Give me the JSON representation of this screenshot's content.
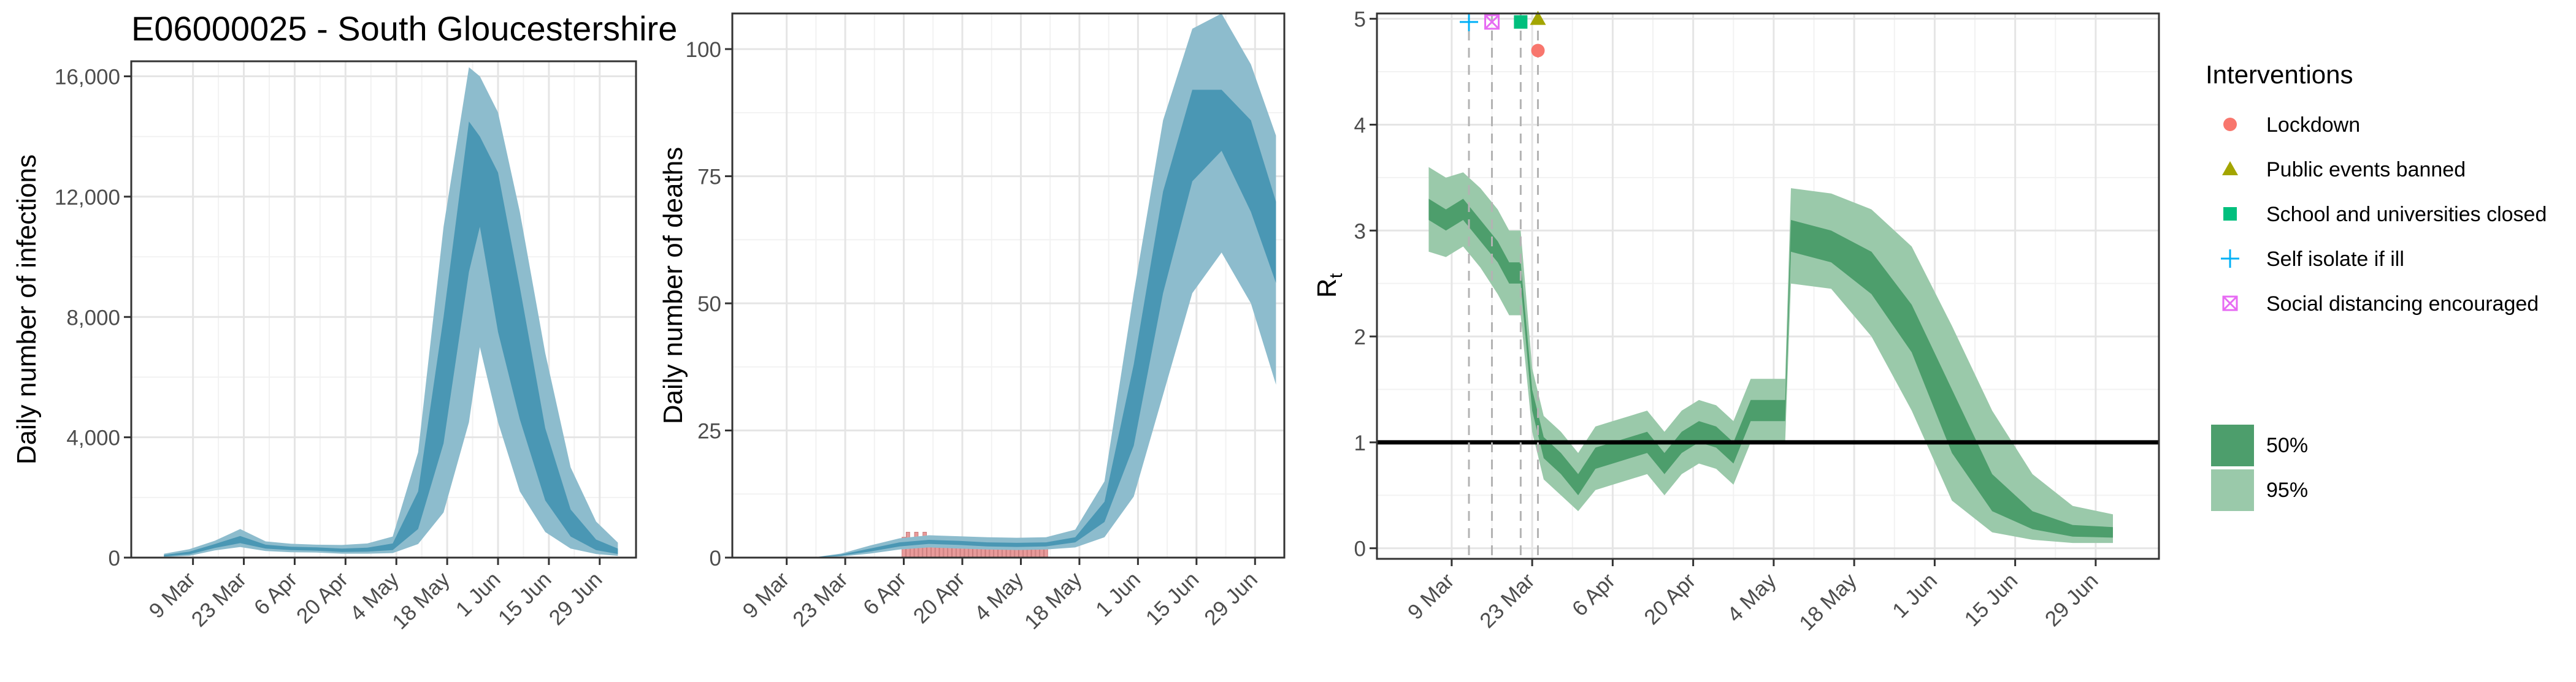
{
  "page": {
    "title": "E06000025 - South Gloucestershire"
  },
  "colors": {
    "infections_band": "#4a97b4",
    "infections_band_95": "#8dbccd",
    "deaths_bar": "#e89a9a",
    "rt_band_50": "#4d9e6c",
    "rt_band_95": "#9ac9aa",
    "lockdown": "#f8766d",
    "public_events": "#a3a500",
    "schools": "#00bf7d",
    "self_isolate": "#00b0f6",
    "social_distancing": "#e76bf3"
  },
  "chart_data": [
    {
      "id": "infections",
      "type": "area",
      "title": "E06000025 - South Gloucestershire",
      "ylabel": "Daily number of infections",
      "xlabel": "",
      "ylim": [
        0,
        16500
      ],
      "yticks": [
        0,
        4000,
        8000,
        12000,
        16000
      ],
      "ytick_labels": [
        "0",
        "4,000",
        "8,000",
        "12,000",
        "16,000"
      ],
      "xticks": [
        "9 Mar",
        "23 Mar",
        "6 Apr",
        "20 Apr",
        "4 May",
        "18 May",
        "1 Jun",
        "15 Jun",
        "29 Jun"
      ],
      "grid": true,
      "series": [
        {
          "x": [
            "2020-03-01",
            "2020-03-08",
            "2020-03-15",
            "2020-03-22",
            "2020-03-29",
            "2020-04-05",
            "2020-04-12",
            "2020-04-19",
            "2020-04-26",
            "2020-05-03",
            "2020-05-10",
            "2020-05-17",
            "2020-05-24",
            "2020-05-27",
            "2020-06-01",
            "2020-06-07",
            "2020-06-14",
            "2020-06-21",
            "2020-06-28",
            "2020-07-04"
          ],
          "median": [
            60,
            150,
            380,
            600,
            360,
            300,
            280,
            240,
            260,
            350,
            1500,
            5800,
            12500,
            14000,
            10500,
            6800,
            3000,
            1100,
            400,
            200
          ],
          "low50": [
            40,
            110,
            320,
            480,
            300,
            250,
            230,
            190,
            200,
            250,
            950,
            3800,
            9500,
            11000,
            7500,
            4600,
            1900,
            700,
            250,
            120
          ],
          "high50": [
            90,
            200,
            450,
            720,
            430,
            360,
            340,
            300,
            330,
            470,
            2200,
            8000,
            14500,
            14000,
            12800,
            9000,
            4300,
            1600,
            600,
            300
          ],
          "low95": [
            20,
            60,
            240,
            350,
            220,
            180,
            170,
            130,
            130,
            150,
            450,
            1500,
            4500,
            7000,
            4500,
            2200,
            850,
            300,
            120,
            60
          ],
          "high95": [
            130,
            280,
            560,
            950,
            540,
            460,
            430,
            420,
            470,
            700,
            3500,
            11000,
            16300,
            16000,
            14800,
            11500,
            6800,
            3000,
            1200,
            500
          ]
        }
      ]
    },
    {
      "id": "deaths",
      "type": "area",
      "ylabel": "Daily number of deaths",
      "xlabel": "",
      "ylim": [
        0,
        107
      ],
      "yticks": [
        0,
        25,
        50,
        75,
        100
      ],
      "ytick_labels": [
        "0",
        "25",
        "50",
        "75",
        "100"
      ],
      "xticks": [
        "9 Mar",
        "23 Mar",
        "6 Apr",
        "20 Apr",
        "4 May",
        "18 May",
        "1 Jun",
        "15 Jun",
        "29 Jun"
      ],
      "grid": true,
      "series": [
        {
          "x": [
            "2020-03-15",
            "2020-03-22",
            "2020-03-29",
            "2020-04-05",
            "2020-04-12",
            "2020-04-19",
            "2020-04-26",
            "2020-05-03",
            "2020-05-10",
            "2020-05-17",
            "2020-05-24",
            "2020-05-31",
            "2020-06-07",
            "2020-06-14",
            "2020-06-21",
            "2020-06-28",
            "2020-07-04"
          ],
          "median": [
            0,
            0.5,
            1.5,
            2.6,
            3.1,
            2.9,
            2.6,
            2.5,
            2.6,
            3.5,
            9,
            30,
            62,
            86,
            92,
            78,
            62
          ],
          "low50": [
            0,
            0.4,
            1.2,
            2.2,
            2.7,
            2.5,
            2.2,
            2.1,
            2.2,
            3,
            7,
            22,
            52,
            74,
            80,
            68,
            54
          ],
          "high50": [
            0,
            0.6,
            1.8,
            3,
            3.5,
            3.3,
            3,
            2.9,
            3,
            4,
            11,
            38,
            72,
            92,
            92,
            86,
            70
          ],
          "low95": [
            0,
            0.2,
            0.8,
            1.6,
            2,
            1.8,
            1.6,
            1.5,
            1.6,
            2,
            4,
            12,
            32,
            52,
            60,
            50,
            34
          ],
          "high95": [
            0,
            0.8,
            2.4,
            3.8,
            4.4,
            4.2,
            4,
            3.9,
            4,
            5.5,
            15,
            52,
            86,
            104,
            107,
            97,
            83
          ]
        }
      ],
      "observed_deaths": [
        {
          "x": "2020-04-06",
          "value": 4
        },
        {
          "x": "2020-04-07",
          "value": 5
        },
        {
          "x": "2020-04-08",
          "value": 3
        },
        {
          "x": "2020-04-09",
          "value": 5
        },
        {
          "x": "2020-04-10",
          "value": 4
        },
        {
          "x": "2020-04-11",
          "value": 5
        },
        {
          "x": "2020-04-12",
          "value": 3
        },
        {
          "x": "2020-04-13",
          "value": 4
        },
        {
          "x": "2020-04-14",
          "value": 2
        },
        {
          "x": "2020-04-15",
          "value": 4
        },
        {
          "x": "2020-04-16",
          "value": 3
        },
        {
          "x": "2020-04-17",
          "value": 2
        },
        {
          "x": "2020-04-18",
          "value": 3
        },
        {
          "x": "2020-04-19",
          "value": 2
        },
        {
          "x": "2020-04-20",
          "value": 3
        },
        {
          "x": "2020-04-21",
          "value": 2
        },
        {
          "x": "2020-04-22",
          "value": 3
        },
        {
          "x": "2020-04-23",
          "value": 2
        },
        {
          "x": "2020-04-24",
          "value": 2
        },
        {
          "x": "2020-04-25",
          "value": 3
        },
        {
          "x": "2020-04-26",
          "value": 2
        },
        {
          "x": "2020-04-27",
          "value": 2
        },
        {
          "x": "2020-04-28",
          "value": 3
        },
        {
          "x": "2020-04-29",
          "value": 2
        },
        {
          "x": "2020-04-30",
          "value": 2
        },
        {
          "x": "2020-05-01",
          "value": 3
        },
        {
          "x": "2020-05-02",
          "value": 2
        },
        {
          "x": "2020-05-03",
          "value": 2
        },
        {
          "x": "2020-05-04",
          "value": 3
        },
        {
          "x": "2020-05-05",
          "value": 2
        },
        {
          "x": "2020-05-06",
          "value": 2
        },
        {
          "x": "2020-05-07",
          "value": 2
        },
        {
          "x": "2020-05-08",
          "value": 2
        },
        {
          "x": "2020-05-09",
          "value": 2
        },
        {
          "x": "2020-05-10",
          "value": 2
        }
      ]
    },
    {
      "id": "rt",
      "type": "area",
      "ylabel": "Rt",
      "xlabel": "",
      "ylim": [
        -0.1,
        5.05
      ],
      "yticks": [
        0,
        1,
        2,
        3,
        4,
        5
      ],
      "ytick_labels": [
        "0",
        "1",
        "2",
        "3",
        "4",
        "5"
      ],
      "xticks": [
        "9 Mar",
        "23 Mar",
        "6 Apr",
        "20 Apr",
        "4 May",
        "18 May",
        "1 Jun",
        "15 Jun",
        "29 Jun"
      ],
      "grid": true,
      "reference_line": 1,
      "series": [
        {
          "x": [
            "2020-03-05",
            "2020-03-08",
            "2020-03-11",
            "2020-03-14",
            "2020-03-17",
            "2020-03-19",
            "2020-03-21",
            "2020-03-23",
            "2020-03-25",
            "2020-03-28",
            "2020-03-31",
            "2020-04-03",
            "2020-04-06",
            "2020-04-09",
            "2020-04-12",
            "2020-04-15",
            "2020-04-18",
            "2020-04-21",
            "2020-04-24",
            "2020-04-27",
            "2020-04-30",
            "2020-05-03",
            "2020-05-06",
            "2020-05-07",
            "2020-05-14",
            "2020-05-21",
            "2020-05-28",
            "2020-06-04",
            "2020-06-11",
            "2020-06-18",
            "2020-06-25",
            "2020-07-02"
          ],
          "median": [
            3.2,
            3.1,
            3.2,
            3.0,
            2.8,
            2.6,
            2.6,
            1.4,
            0.95,
            0.8,
            0.6,
            0.85,
            0.9,
            0.95,
            1.0,
            0.8,
            1.0,
            1.1,
            1.05,
            0.9,
            1.3,
            1.3,
            1.3,
            2.95,
            2.85,
            2.6,
            2.1,
            1.2,
            0.5,
            0.25,
            0.16,
            0.15
          ],
          "low50": [
            3.1,
            3.0,
            3.1,
            2.9,
            2.7,
            2.5,
            2.5,
            1.3,
            0.85,
            0.7,
            0.5,
            0.75,
            0.8,
            0.85,
            0.9,
            0.7,
            0.9,
            1.0,
            0.95,
            0.8,
            1.2,
            1.2,
            1.2,
            2.8,
            2.7,
            2.4,
            1.85,
            0.9,
            0.35,
            0.18,
            0.11,
            0.1
          ],
          "high50": [
            3.3,
            3.2,
            3.3,
            3.1,
            2.9,
            2.7,
            2.7,
            1.5,
            1.05,
            0.9,
            0.7,
            0.95,
            1.0,
            1.05,
            1.1,
            0.9,
            1.1,
            1.2,
            1.15,
            1.0,
            1.4,
            1.4,
            1.4,
            3.1,
            3.0,
            2.8,
            2.3,
            1.5,
            0.7,
            0.35,
            0.22,
            0.2
          ],
          "low95": [
            2.8,
            2.75,
            2.85,
            2.65,
            2.4,
            2.2,
            2.2,
            1.1,
            0.65,
            0.5,
            0.35,
            0.55,
            0.6,
            0.65,
            0.7,
            0.5,
            0.7,
            0.8,
            0.75,
            0.6,
            1.0,
            1.0,
            1.0,
            2.5,
            2.45,
            2.0,
            1.3,
            0.45,
            0.15,
            0.08,
            0.05,
            0.05
          ],
          "high95": [
            3.6,
            3.5,
            3.55,
            3.4,
            3.2,
            3.0,
            3.0,
            1.7,
            1.25,
            1.1,
            0.9,
            1.15,
            1.2,
            1.25,
            1.3,
            1.1,
            1.3,
            1.4,
            1.35,
            1.2,
            1.6,
            1.6,
            1.6,
            3.4,
            3.35,
            3.2,
            2.85,
            2.1,
            1.3,
            0.7,
            0.4,
            0.32
          ]
        }
      ],
      "interventions": [
        {
          "name": "Lockdown",
          "x": "2020-03-24",
          "y": 4.7,
          "marker": "circle"
        },
        {
          "name": "Public events banned",
          "x": "2020-03-24",
          "y": 5.0,
          "marker": "triangle"
        },
        {
          "name": "School and universities closed",
          "x": "2020-03-21",
          "y": 4.97,
          "marker": "square"
        },
        {
          "name": "Self isolate if ill",
          "x": "2020-03-12",
          "y": 4.97,
          "marker": "plus"
        },
        {
          "name": "Social distancing encouraged",
          "x": "2020-03-16",
          "y": 4.97,
          "marker": "boxx"
        }
      ]
    }
  ],
  "legend": {
    "interventions_title": "Interventions",
    "interventions": [
      {
        "label": "Lockdown",
        "marker": "circle"
      },
      {
        "label": "Public events banned",
        "marker": "triangle"
      },
      {
        "label": "School and universities closed",
        "marker": "square"
      },
      {
        "label": "Self isolate if ill",
        "marker": "plus"
      },
      {
        "label": "Social distancing encouraged",
        "marker": "boxx"
      }
    ],
    "bands": [
      {
        "label": "50%"
      },
      {
        "label": "95%"
      }
    ]
  }
}
